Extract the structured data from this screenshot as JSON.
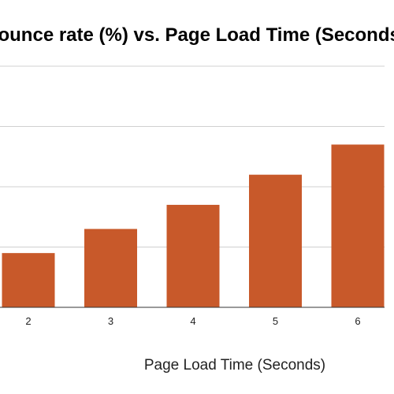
{
  "chart_data": {
    "type": "bar",
    "title": "Bounce rate (%) vs. Page Load Time (Seconds)",
    "xlabel": "Page Load Time (Seconds)",
    "ylabel": "",
    "categories": [
      "2",
      "3",
      "4",
      "5",
      "6"
    ],
    "values": [
      9,
      13,
      17,
      22,
      27
    ],
    "ylim": [
      0,
      40
    ],
    "grid": true,
    "legend": "none",
    "colors": {
      "bar": "#c8592a",
      "grid": "#d0d0d0",
      "baseline": "#333333"
    }
  }
}
